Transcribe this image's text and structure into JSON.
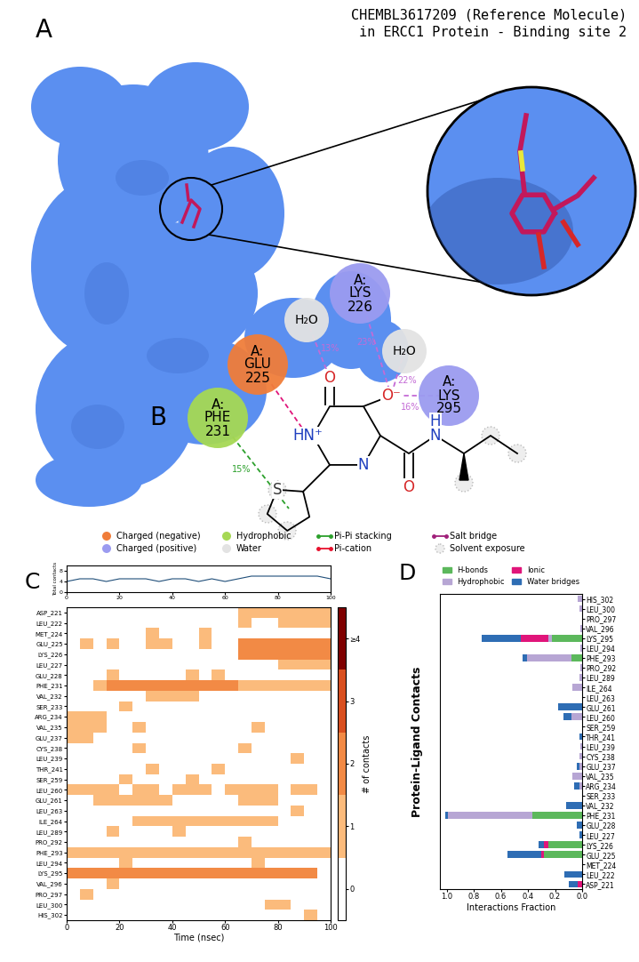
{
  "panel_a": {
    "label": "A",
    "title": "CHEMBL3617209 (Reference Molecule)\nin ERCC1 Protein - Binding site 2"
  },
  "panel_b": {
    "label": "B",
    "residues": [
      {
        "name": "A:\nPHE\n231",
        "color": "#a6d854"
      },
      {
        "name": "A:\nGLU\n225",
        "color": "#f07d3a"
      },
      {
        "name": "H₂O",
        "color": "#e3e3e3"
      },
      {
        "name": "A:\nLYS\n226",
        "color": "#9b9bf0"
      },
      {
        "name": "H₂O",
        "color": "#e3e3e3"
      },
      {
        "name": "A:\nLYS\n295",
        "color": "#9b9bf0"
      }
    ],
    "ligand_atoms": [
      "O",
      "O⁻",
      "HN⁺",
      "N",
      "S",
      "H",
      "N",
      "O"
    ],
    "interactions": [
      {
        "residue": 1,
        "atom": 2,
        "color": "#e0157a"
      },
      {
        "residue": 2,
        "atom": 0,
        "color": "#c46bd6",
        "label": "13%"
      },
      {
        "residue": 3,
        "atom": 1,
        "color": "#c46bd6",
        "label": "23%"
      },
      {
        "residue": 4,
        "atom": 1,
        "color": "#c46bd6",
        "label": "22%"
      },
      {
        "residue": 5,
        "atom": 1,
        "color": "#c46bd6",
        "label": "16%"
      },
      {
        "residue": 0,
        "atom": 4,
        "color": "#2ca02c",
        "label": "15%"
      }
    ],
    "legend": [
      {
        "label": "Charged (negative)",
        "color": "#f07d3a",
        "marker": "circle"
      },
      {
        "label": "Charged (positive)",
        "color": "#9b9bf0",
        "marker": "circle"
      },
      {
        "label": "Hydrophobic",
        "color": "#a6d854",
        "marker": "circle"
      },
      {
        "label": "Water",
        "color": "#e3e3e3",
        "marker": "circle"
      },
      {
        "label": "Pi-Pi stacking",
        "color": "#2ca02c",
        "marker": "line"
      },
      {
        "label": "Pi-cation",
        "color": "#e8112d",
        "marker": "line"
      },
      {
        "label": "Salt bridge",
        "color": "#a0207a",
        "marker": "line"
      },
      {
        "label": "Solvent exposure",
        "color": "#bbbbbb",
        "marker": "halo"
      }
    ]
  },
  "chart_data": [
    {
      "type": "line",
      "y_label": "Total contacts",
      "color": "#1f4e79",
      "x": [
        0,
        5,
        10,
        15,
        20,
        25,
        30,
        35,
        40,
        45,
        50,
        55,
        60,
        65,
        70,
        75,
        80,
        85,
        90,
        95,
        100
      ],
      "values": [
        4,
        5,
        5,
        4,
        5,
        5,
        5,
        4,
        5,
        5,
        4,
        5,
        4,
        5,
        6,
        6,
        6,
        6,
        6,
        6,
        5
      ],
      "xlim": [
        0,
        100
      ],
      "xticks": [
        0,
        20,
        40,
        60,
        80,
        100
      ],
      "ylim": [
        0,
        10
      ],
      "yticks": [
        0,
        4,
        8
      ]
    },
    {
      "type": "heatmap",
      "label": "C",
      "x_label": "Time (nsec)",
      "categories": [
        "ASP_221",
        "LEU_222",
        "MET_224",
        "GLU_225",
        "LYS_226",
        "LEU_227",
        "GLU_228",
        "PHE_231",
        "VAL_232",
        "SER_233",
        "ARG_234",
        "VAL_235",
        "GLU_237",
        "CYS_238",
        "LEU_239",
        "THR_241",
        "SER_259",
        "LEU_260",
        "GLU_261",
        "LEU_263",
        "ILE_264",
        "LEU_289",
        "PRO_292",
        "PHE_293",
        "LEU_294",
        "LYS_295",
        "VAL_296",
        "PRO_297",
        "LEU_300",
        "HIS_302"
      ],
      "time_bins": [
        0,
        5,
        10,
        15,
        20,
        25,
        30,
        35,
        40,
        45,
        50,
        55,
        60,
        65,
        70,
        75,
        80,
        85,
        90,
        95,
        100
      ],
      "cells": [
        [
          0,
          0,
          0,
          0,
          0,
          0,
          0,
          0,
          0,
          0,
          0,
          0,
          0,
          1,
          1,
          1,
          1,
          1,
          1,
          1
        ],
        [
          0,
          0,
          0,
          0,
          0,
          0,
          0,
          0,
          0,
          0,
          0,
          0,
          0,
          1,
          0,
          0,
          1,
          1,
          1,
          1
        ],
        [
          0,
          0,
          0,
          0,
          0,
          0,
          1,
          0,
          0,
          0,
          1,
          0,
          0,
          0,
          0,
          0,
          0,
          0,
          0,
          0
        ],
        [
          0,
          1,
          0,
          1,
          0,
          0,
          1,
          1,
          0,
          0,
          1,
          0,
          0,
          2,
          2,
          2,
          2,
          2,
          2,
          2
        ],
        [
          0,
          0,
          0,
          0,
          0,
          0,
          0,
          0,
          0,
          0,
          0,
          0,
          0,
          2,
          2,
          2,
          2,
          2,
          2,
          2
        ],
        [
          0,
          0,
          0,
          0,
          0,
          0,
          0,
          0,
          0,
          0,
          0,
          0,
          0,
          0,
          0,
          0,
          1,
          1,
          1,
          1
        ],
        [
          0,
          0,
          0,
          1,
          0,
          0,
          0,
          0,
          0,
          1,
          0,
          1,
          0,
          0,
          0,
          0,
          0,
          0,
          0,
          0
        ],
        [
          0,
          0,
          1,
          2,
          2,
          2,
          2,
          2,
          2,
          2,
          2,
          2,
          2,
          1,
          1,
          1,
          1,
          1,
          1,
          1
        ],
        [
          0,
          0,
          0,
          0,
          0,
          0,
          1,
          1,
          1,
          1,
          0,
          0,
          0,
          0,
          0,
          0,
          0,
          0,
          0,
          0
        ],
        [
          0,
          0,
          0,
          0,
          1,
          0,
          0,
          0,
          0,
          0,
          0,
          0,
          0,
          0,
          0,
          0,
          0,
          0,
          0,
          0
        ],
        [
          1,
          1,
          1,
          0,
          0,
          0,
          0,
          0,
          0,
          0,
          0,
          0,
          0,
          0,
          0,
          0,
          0,
          0,
          0,
          0
        ],
        [
          1,
          1,
          1,
          0,
          0,
          1,
          0,
          0,
          0,
          0,
          0,
          0,
          0,
          0,
          1,
          0,
          0,
          0,
          0,
          0
        ],
        [
          1,
          1,
          0,
          0,
          0,
          0,
          0,
          0,
          0,
          0,
          0,
          0,
          0,
          0,
          0,
          0,
          0,
          0,
          0,
          0
        ],
        [
          0,
          0,
          0,
          0,
          0,
          1,
          0,
          0,
          0,
          0,
          0,
          0,
          0,
          1,
          0,
          0,
          0,
          0,
          0,
          0
        ],
        [
          0,
          0,
          0,
          0,
          0,
          0,
          0,
          0,
          0,
          0,
          0,
          0,
          0,
          0,
          0,
          0,
          0,
          1,
          0,
          0
        ],
        [
          0,
          0,
          0,
          0,
          0,
          0,
          1,
          0,
          0,
          0,
          0,
          1,
          0,
          0,
          0,
          0,
          0,
          0,
          0,
          0
        ],
        [
          0,
          0,
          0,
          0,
          1,
          0,
          0,
          0,
          0,
          1,
          0,
          0,
          0,
          0,
          0,
          0,
          0,
          0,
          0,
          0
        ],
        [
          1,
          1,
          1,
          1,
          0,
          1,
          1,
          0,
          1,
          1,
          1,
          0,
          1,
          1,
          1,
          1,
          0,
          1,
          1,
          0
        ],
        [
          0,
          0,
          1,
          1,
          1,
          1,
          1,
          1,
          0,
          0,
          0,
          0,
          0,
          1,
          1,
          1,
          0,
          0,
          0,
          0
        ],
        [
          0,
          0,
          0,
          0,
          0,
          0,
          0,
          0,
          0,
          0,
          0,
          0,
          0,
          0,
          0,
          0,
          0,
          1,
          0,
          0
        ],
        [
          0,
          0,
          0,
          0,
          0,
          1,
          1,
          1,
          1,
          1,
          1,
          1,
          1,
          1,
          1,
          1,
          0,
          0,
          0,
          0
        ],
        [
          0,
          0,
          0,
          1,
          0,
          0,
          0,
          0,
          1,
          0,
          0,
          0,
          0,
          0,
          0,
          0,
          0,
          0,
          0,
          0
        ],
        [
          0,
          0,
          0,
          0,
          0,
          0,
          0,
          0,
          0,
          0,
          0,
          0,
          0,
          1,
          0,
          0,
          0,
          0,
          0,
          0
        ],
        [
          1,
          1,
          1,
          1,
          1,
          1,
          1,
          1,
          1,
          1,
          1,
          1,
          1,
          1,
          1,
          1,
          1,
          1,
          1,
          1
        ],
        [
          0,
          0,
          0,
          0,
          1,
          0,
          0,
          0,
          0,
          0,
          0,
          0,
          0,
          0,
          1,
          0,
          0,
          0,
          0,
          0
        ],
        [
          2,
          2,
          2,
          2,
          2,
          2,
          2,
          2,
          2,
          2,
          2,
          2,
          2,
          2,
          2,
          2,
          2,
          2,
          2,
          0
        ],
        [
          0,
          0,
          0,
          1,
          0,
          0,
          0,
          0,
          0,
          0,
          0,
          0,
          0,
          0,
          0,
          0,
          0,
          0,
          0,
          0
        ],
        [
          0,
          1,
          0,
          0,
          0,
          0,
          0,
          0,
          0,
          0,
          0,
          0,
          0,
          0,
          0,
          0,
          0,
          0,
          0,
          0
        ],
        [
          0,
          0,
          0,
          0,
          0,
          0,
          0,
          0,
          0,
          0,
          0,
          0,
          0,
          0,
          0,
          1,
          1,
          0,
          0,
          0
        ],
        [
          0,
          0,
          0,
          0,
          0,
          0,
          0,
          0,
          0,
          0,
          0,
          0,
          0,
          0,
          0,
          0,
          0,
          0,
          1,
          0
        ]
      ],
      "xlim": [
        0,
        100
      ],
      "xticks": [
        0,
        20,
        40,
        60,
        80,
        100
      ],
      "colorbar": {
        "label": "# of contacts",
        "range": [
          -0.5,
          4.5
        ],
        "bins": [
          -0.5,
          0.5,
          1.5,
          2.5,
          3.5,
          4.5
        ],
        "colors": [
          "#ffffff",
          "#fbbb7c",
          "#f28a45",
          "#d94f1f",
          "#7f0000"
        ],
        "ticks": [
          0,
          1,
          2,
          3,
          {
            "value": 4,
            "label": "≥4"
          }
        ]
      }
    },
    {
      "type": "bar",
      "label": "D",
      "title": "Protein-Ligand Contacts",
      "x_label": "Interactions Fraction",
      "orientation": "horizontal",
      "stacked": true,
      "legend": "lower center",
      "categories": [
        "ASP_221",
        "LEU_222",
        "MET_224",
        "GLU_225",
        "LYS_226",
        "LEU_227",
        "GLU_228",
        "PHE_231",
        "VAL_232",
        "SER_233",
        "ARG_234",
        "VAL_235",
        "GLU_237",
        "CYS_238",
        "LEU_239",
        "THR_241",
        "SER_259",
        "LEU_260",
        "GLU_261",
        "LEU_263",
        "ILE_264",
        "LEU_289",
        "PRO_292",
        "PHE_293",
        "LEU_294",
        "LYS_295",
        "VAL_296",
        "PRO_297",
        "LEU_300",
        "HIS_302"
      ],
      "series": [
        {
          "name": "H-bonds",
          "color": "#5cb85c",
          "values": [
            0,
            0,
            0,
            0.28,
            0.25,
            0,
            0,
            0.37,
            0,
            0,
            0,
            0,
            0,
            0,
            0,
            0,
            0,
            0,
            0,
            0,
            0,
            0,
            0,
            0.08,
            0,
            0.22,
            0,
            0,
            0,
            0
          ]
        },
        {
          "name": "Hydrophobic",
          "color": "#b7a6d4",
          "values": [
            0,
            0,
            0,
            0,
            0,
            0,
            0,
            0.62,
            0,
            0,
            0.02,
            0.07,
            0.02,
            0.02,
            0.01,
            0,
            0,
            0.08,
            0,
            0,
            0.07,
            0.02,
            0.01,
            0.33,
            0.01,
            0.03,
            0.01,
            0,
            0.02,
            0.03
          ]
        },
        {
          "name": "Ionic",
          "color": "#e0157a",
          "values": [
            0.03,
            0,
            0,
            0.02,
            0.03,
            0,
            0,
            0,
            0,
            0,
            0,
            0,
            0,
            0,
            0,
            0,
            0,
            0,
            0,
            0,
            0,
            0,
            0,
            0,
            0,
            0.2,
            0,
            0,
            0,
            0
          ]
        },
        {
          "name": "Water bridges",
          "color": "#2e6db4",
          "values": [
            0.07,
            0.13,
            0,
            0.25,
            0.04,
            0.02,
            0.04,
            0.02,
            0.12,
            0,
            0.04,
            0,
            0.02,
            0,
            0,
            0.02,
            0,
            0.06,
            0.18,
            0,
            0,
            0,
            0,
            0.03,
            0,
            0.29,
            0,
            0,
            0,
            0
          ]
        }
      ],
      "xlim": [
        1.05,
        0.0
      ],
      "xticks": [
        {
          "value": 1.0,
          "label": "1.0"
        },
        {
          "value": 0.8,
          "label": "0.8"
        },
        {
          "value": 0.6,
          "label": "0.6"
        },
        {
          "value": 0.4,
          "label": "0.4"
        },
        {
          "value": 0.2,
          "label": "0.2"
        },
        {
          "value": 0.0,
          "label": "0.0"
        }
      ]
    }
  ]
}
